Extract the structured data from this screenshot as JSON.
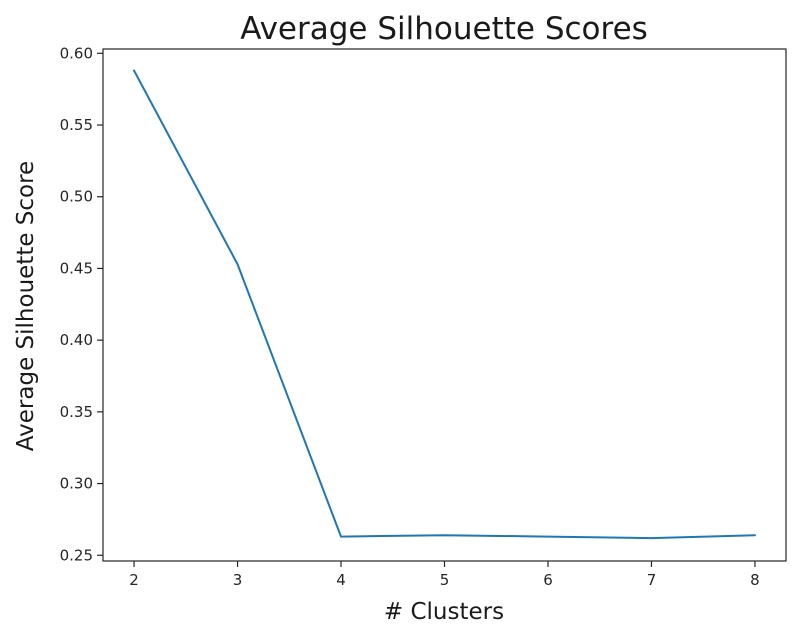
{
  "chart_data": {
    "type": "line",
    "title": "Average Silhouette Scores",
    "xlabel": "# Clusters",
    "ylabel": "Average Silhouette Score",
    "x": [
      2,
      3,
      4,
      5,
      6,
      7,
      8
    ],
    "series": [
      {
        "values": [
          0.588,
          0.453,
          0.263,
          0.264,
          0.263,
          0.262,
          0.264
        ]
      }
    ],
    "xticks": [
      "2",
      "3",
      "4",
      "5",
      "6",
      "7",
      "8"
    ],
    "yticks": [
      "0.25",
      "0.30",
      "0.35",
      "0.40",
      "0.45",
      "0.50",
      "0.55",
      "0.60"
    ],
    "xlim": [
      1.7,
      8.3
    ],
    "ylim": [
      0.246,
      0.603
    ],
    "grid": false,
    "legend": "none",
    "colors": {
      "series": "#1f77b4"
    }
  }
}
